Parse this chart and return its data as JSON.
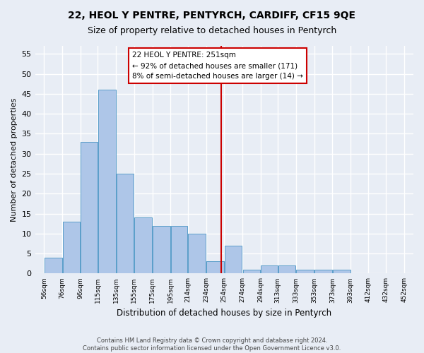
{
  "title": "22, HEOL Y PENTRE, PENTYRCH, CARDIFF, CF15 9QE",
  "subtitle": "Size of property relative to detached houses in Pentyrch",
  "xlabel": "Distribution of detached houses by size in Pentyrch",
  "ylabel": "Number of detached properties",
  "bar_values": [
    4,
    13,
    33,
    46,
    25,
    14,
    12,
    12,
    10,
    3,
    7,
    1,
    2,
    2,
    1,
    1,
    1
  ],
  "xtick_labels": [
    "56sqm",
    "76sqm",
    "96sqm",
    "115sqm",
    "135sqm",
    "155sqm",
    "175sqm",
    "195sqm",
    "214sqm",
    "234sqm",
    "254sqm",
    "274sqm",
    "294sqm",
    "313sqm",
    "333sqm",
    "353sqm",
    "373sqm",
    "393sqm",
    "412sqm",
    "432sqm",
    "452sqm"
  ],
  "bar_color": "#aec6e8",
  "bar_edge_color": "#5a9ec9",
  "vline_x": 251,
  "vline_color": "#cc0000",
  "ylim": [
    0,
    57
  ],
  "yticks": [
    0,
    5,
    10,
    15,
    20,
    25,
    30,
    35,
    40,
    45,
    50,
    55
  ],
  "annotation_text": "22 HEOL Y PENTRE: 251sqm\n← 92% of detached houses are smaller (171)\n8% of semi-detached houses are larger (14) →",
  "annotation_box_color": "#ffffff",
  "annotation_box_edge": "#cc0000",
  "footer_text": "Contains HM Land Registry data © Crown copyright and database right 2024.\nContains public sector information licensed under the Open Government Licence v3.0.",
  "bg_color": "#e8edf5",
  "grid_color": "#ffffff"
}
